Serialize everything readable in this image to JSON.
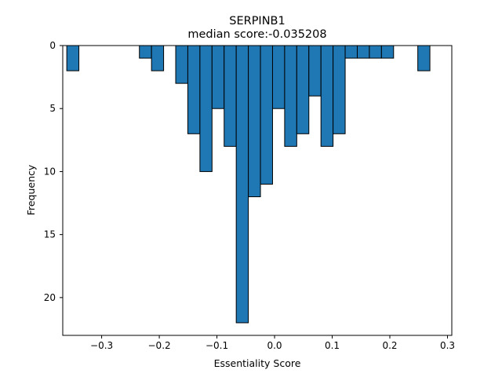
{
  "chart_data": {
    "type": "bar",
    "title": "SERPINB1",
    "subtitle": "median score:-0.035208",
    "xlabel": "Essentiality Score",
    "ylabel": "Frequency",
    "y_inverted": true,
    "xlim": [
      -0.3675,
      0.3075
    ],
    "ylim": [
      0,
      23
    ],
    "xticks": [
      -0.3,
      -0.2,
      -0.1,
      0.0,
      0.1,
      0.2,
      0.3
    ],
    "xtick_labels": [
      "−0.3",
      "−0.2",
      "−0.1",
      "0.0",
      "0.1",
      "0.2",
      "0.3"
    ],
    "yticks": [
      0,
      5,
      10,
      15,
      20
    ],
    "ytick_labels": [
      "0",
      "5",
      "10",
      "15",
      "20"
    ],
    "bin_width": 0.021,
    "bins": [
      {
        "x": -0.35,
        "count": 2
      },
      {
        "x": -0.329,
        "count": 0
      },
      {
        "x": -0.308,
        "count": 0
      },
      {
        "x": -0.287,
        "count": 0
      },
      {
        "x": -0.266,
        "count": 0
      },
      {
        "x": -0.245,
        "count": 0
      },
      {
        "x": -0.224,
        "count": 1
      },
      {
        "x": -0.203,
        "count": 2
      },
      {
        "x": -0.182,
        "count": 0
      },
      {
        "x": -0.161,
        "count": 3
      },
      {
        "x": -0.14,
        "count": 7
      },
      {
        "x": -0.119,
        "count": 10
      },
      {
        "x": -0.098,
        "count": 5
      },
      {
        "x": -0.077,
        "count": 8
      },
      {
        "x": -0.056,
        "count": 22
      },
      {
        "x": -0.035,
        "count": 12
      },
      {
        "x": -0.014,
        "count": 11
      },
      {
        "x": 0.007,
        "count": 5
      },
      {
        "x": 0.028,
        "count": 8
      },
      {
        "x": 0.049,
        "count": 7
      },
      {
        "x": 0.07,
        "count": 4
      },
      {
        "x": 0.091,
        "count": 8
      },
      {
        "x": 0.112,
        "count": 7
      },
      {
        "x": 0.133,
        "count": 1
      },
      {
        "x": 0.154,
        "count": 1
      },
      {
        "x": 0.175,
        "count": 1
      },
      {
        "x": 0.196,
        "count": 1
      },
      {
        "x": 0.217,
        "count": 0
      },
      {
        "x": 0.238,
        "count": 0
      },
      {
        "x": 0.259,
        "count": 2
      }
    ],
    "bar_color": "#1f77b4",
    "edge_color": "#000000",
    "grid": false,
    "legend": "none"
  }
}
